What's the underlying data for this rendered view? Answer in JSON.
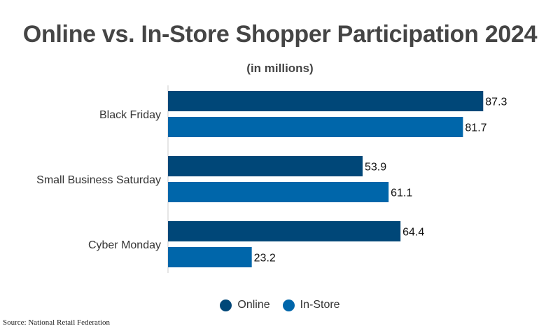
{
  "chart_data": {
    "type": "bar",
    "orientation": "horizontal",
    "title": "Online vs. In-Store Shopper Participation 2024",
    "subtitle": "(in millions)",
    "categories": [
      "Black Friday",
      "Small Business Saturday",
      "Cyber Monday"
    ],
    "series": [
      {
        "name": "Online",
        "values": [
          87.3,
          53.9,
          64.4
        ],
        "color": "#004778"
      },
      {
        "name": "In-Store",
        "values": [
          81.7,
          61.1,
          23.2
        ],
        "color": "#0066AA"
      }
    ],
    "xlim": [
      0,
      95
    ],
    "grid": false,
    "legend_position": "bottom-center"
  },
  "source": "Source: National Retail Federation"
}
